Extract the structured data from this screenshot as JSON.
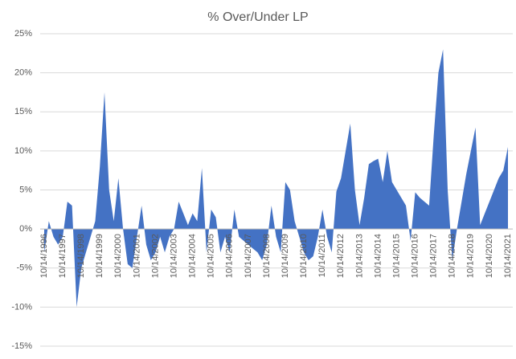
{
  "chart_data": {
    "type": "area",
    "title": "% Over/Under  LP",
    "categories": [
      "10/14/1996",
      null,
      null,
      null,
      "10/14/1997",
      null,
      null,
      null,
      "10/14/1998",
      null,
      null,
      null,
      "10/14/1999",
      null,
      null,
      null,
      "10/14/2000",
      null,
      null,
      null,
      "10/14/2001",
      null,
      null,
      null,
      "10/14/2002",
      null,
      null,
      null,
      "10/14/2003",
      null,
      null,
      null,
      "10/14/2004",
      null,
      null,
      null,
      "10/14/2005",
      null,
      null,
      null,
      "10/14/2006",
      null,
      null,
      null,
      "10/14/2007",
      null,
      null,
      null,
      "10/14/2008",
      null,
      null,
      null,
      "10/14/2009",
      null,
      null,
      null,
      "10/14/2010",
      null,
      null,
      null,
      "10/14/2011",
      null,
      null,
      null,
      "10/14/2012",
      null,
      null,
      null,
      "10/14/2013",
      null,
      null,
      null,
      "10/14/2014",
      null,
      null,
      null,
      "10/14/2015",
      null,
      null,
      null,
      "10/14/2016",
      null,
      null,
      null,
      "10/14/2017",
      null,
      null,
      null,
      "10/14/2018",
      null,
      null,
      null,
      "10/14/2019",
      null,
      null,
      null,
      "10/14/2020",
      null,
      null,
      null,
      "10/14/2021"
    ],
    "values": [
      -3,
      1,
      -1,
      -2,
      -1,
      3.5,
      3,
      -10,
      -5,
      -3,
      -1,
      1,
      8,
      17.5,
      5,
      1,
      6.5,
      0,
      -4.5,
      -5,
      -1,
      3,
      -2,
      -4,
      -3,
      -1,
      -3,
      -1,
      0,
      3.5,
      2,
      0.5,
      2,
      1,
      7.8,
      -3,
      2.5,
      1.5,
      -3,
      -1,
      -3,
      2.5,
      -1,
      -1.5,
      -2,
      -2.5,
      -3,
      -4,
      -2,
      3,
      -1,
      -3,
      6,
      5,
      1,
      -1,
      -3,
      -4,
      -3.5,
      -1,
      2.5,
      -1,
      -3,
      4.8,
      6.5,
      10,
      13.5,
      5,
      0.5,
      4,
      8.3,
      8.7,
      9,
      6,
      10,
      6,
      5,
      4,
      3,
      -1.5,
      4.7,
      4,
      3.5,
      3,
      12,
      20,
      23,
      5,
      -4,
      0,
      3.5,
      7,
      10,
      13,
      0.5,
      2,
      3.5,
      5,
      6.5,
      7.5,
      10.5
    ],
    "color": "#4472c4",
    "ylim": [
      -15,
      25
    ],
    "yticks": [
      {
        "value": -15,
        "label": "-15%"
      },
      {
        "value": -10,
        "label": "-10%"
      },
      {
        "value": -5,
        "label": "-5%"
      },
      {
        "value": 0,
        "label": "0%"
      },
      {
        "value": 5,
        "label": "5%"
      },
      {
        "value": 10,
        "label": "10%"
      },
      {
        "value": 15,
        "label": "15%"
      },
      {
        "value": 20,
        "label": "20%"
      },
      {
        "value": 25,
        "label": "25%"
      }
    ],
    "grid": true
  }
}
